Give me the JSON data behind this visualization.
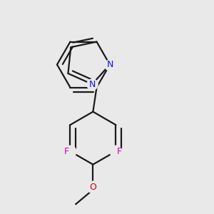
{
  "bg_color": "#e9e9e9",
  "bond_color": "#1a1a1a",
  "N_color": "#1010ee",
  "F_color": "#cc00bb",
  "O_color": "#cc0000",
  "bond_width": 1.6,
  "dbo": 0.022,
  "figsize": [
    3.0,
    3.0
  ],
  "dpi": 100,
  "xlim": [
    0.05,
    0.95
  ],
  "ylim": [
    0.05,
    0.95
  ]
}
